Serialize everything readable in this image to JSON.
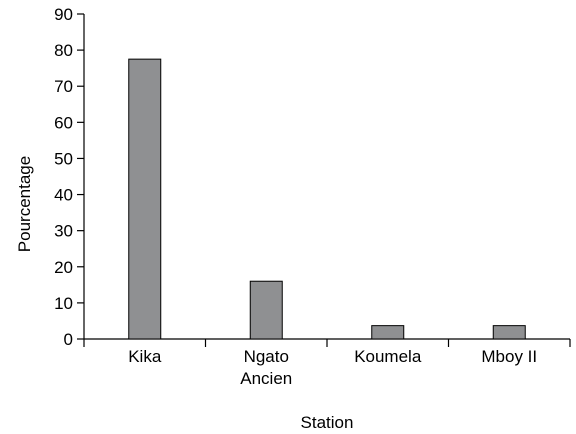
{
  "chart_data": {
    "type": "bar",
    "categories": [
      [
        "Kika"
      ],
      [
        "Ngato",
        "Ancien"
      ],
      [
        "Koumela"
      ],
      [
        "Mboy II"
      ]
    ],
    "values": [
      77.5,
      16,
      3.7,
      3.7
    ],
    "xlabel": "Station",
    "ylabel": "Pourcentage",
    "ylim": [
      0,
      90
    ],
    "yticks": [
      0,
      10,
      20,
      30,
      40,
      50,
      60,
      70,
      80,
      90
    ],
    "grid": false,
    "bar_color": "#8f9092"
  }
}
